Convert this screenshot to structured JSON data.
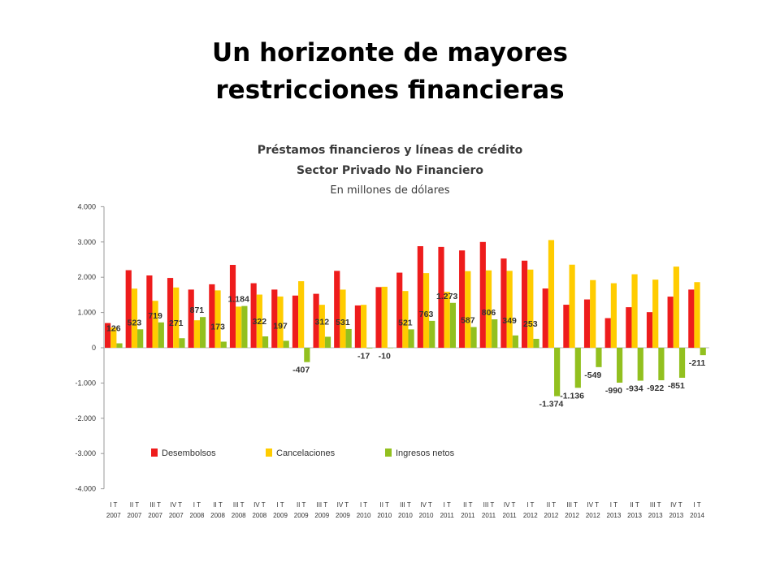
{
  "slide": {
    "title_line1": "Un horizonte de mayores",
    "title_line2": "restricciones financieras"
  },
  "chart_data": {
    "type": "bar",
    "title": "Préstamos financieros y líneas de crédito",
    "subtitle": "Sector Privado No Financiero",
    "unit_note": "En millones de dólares",
    "ylim": [
      -4000,
      4000
    ],
    "yticks": [
      4000,
      3000,
      2000,
      1000,
      0,
      -1000,
      -2000,
      -3000,
      -4000
    ],
    "ytick_labels": [
      "4.000",
      "3.000",
      "2.000",
      "1.000",
      "0",
      "-1.000",
      "-2.000",
      "-3.000",
      "-4.000"
    ],
    "legend_position": "bottom",
    "categories": [
      "I T 2007",
      "II T 2007",
      "III T 2007",
      "IV T 2007",
      "I T 2008",
      "II T 2008",
      "III T 2008",
      "IV T 2008",
      "I T 2009",
      "II T 2009",
      "III T 2009",
      "IV T 2009",
      "I T 2010",
      "II T 2010",
      "III T 2010",
      "IV T 2010",
      "I T 2011",
      "II T 2011",
      "III T 2011",
      "IV T 2011",
      "I T 2012",
      "II T 2012",
      "III T 2012",
      "IV T 2012",
      "I T 2013",
      "II T 2013",
      "III T 2013",
      "IV T 2013",
      "I T 2014"
    ],
    "category_top": [
      "I T",
      "II T",
      "III T",
      "IV T",
      "I T",
      "II T",
      "III T",
      "IV T",
      "I T",
      "II T",
      "III T",
      "IV T",
      "I T",
      "II T",
      "III T",
      "IV T",
      "I T",
      "II T",
      "III T",
      "IV T",
      "I T",
      "II T",
      "III T",
      "IV T",
      "I T",
      "II T",
      "III T",
      "IV T",
      "I T"
    ],
    "category_bottom": [
      "2007",
      "2007",
      "2007",
      "2007",
      "2008",
      "2008",
      "2008",
      "2008",
      "2009",
      "2009",
      "2009",
      "2009",
      "2010",
      "2010",
      "2010",
      "2010",
      "2011",
      "2011",
      "2011",
      "2011",
      "2012",
      "2012",
      "2012",
      "2012",
      "2013",
      "2013",
      "2013",
      "2013",
      "2014"
    ],
    "series": [
      {
        "name": "Desembolsos",
        "color": "#ee1c1c",
        "values": [
          700,
          2200,
          2050,
          1980,
          1650,
          1800,
          2350,
          1830,
          1650,
          1480,
          1530,
          2180,
          1200,
          1720,
          2130,
          2880,
          2860,
          2760,
          3000,
          2530,
          2470,
          1680,
          1220,
          1370,
          840,
          1150,
          1010,
          1450,
          1650
        ]
      },
      {
        "name": "Cancelaciones",
        "color": "#ffcc00",
        "values": [
          574,
          1677,
          1331,
          1709,
          779,
          1627,
          1166,
          1508,
          1453,
          1887,
          1218,
          1649,
          1217,
          1730,
          1609,
          2117,
          1587,
          2173,
          2194,
          2181,
          2217,
          3054,
          2356,
          1919,
          1830,
          2084,
          1932,
          2301,
          1861
        ]
      },
      {
        "name": "Ingresos netos",
        "color": "#92c01f",
        "values": [
          126,
          523,
          719,
          271,
          871,
          173,
          1184,
          322,
          197,
          -407,
          312,
          531,
          -17,
          -10,
          521,
          763,
          1273,
          587,
          806,
          349,
          253,
          -1374,
          -1136,
          -549,
          -990,
          -934,
          -922,
          -851,
          -211
        ],
        "labels": [
          "126",
          "523",
          "719",
          "271",
          "871",
          "173",
          "1.184",
          "322",
          "197",
          "-407",
          "312",
          "531",
          "-17",
          "-10",
          "521",
          "763",
          "1.273",
          "587",
          "806",
          "349",
          "253",
          "-1.374",
          "-1.136",
          "-549",
          "-990",
          "-934",
          "-922",
          "-851",
          "-211"
        ]
      }
    ]
  }
}
